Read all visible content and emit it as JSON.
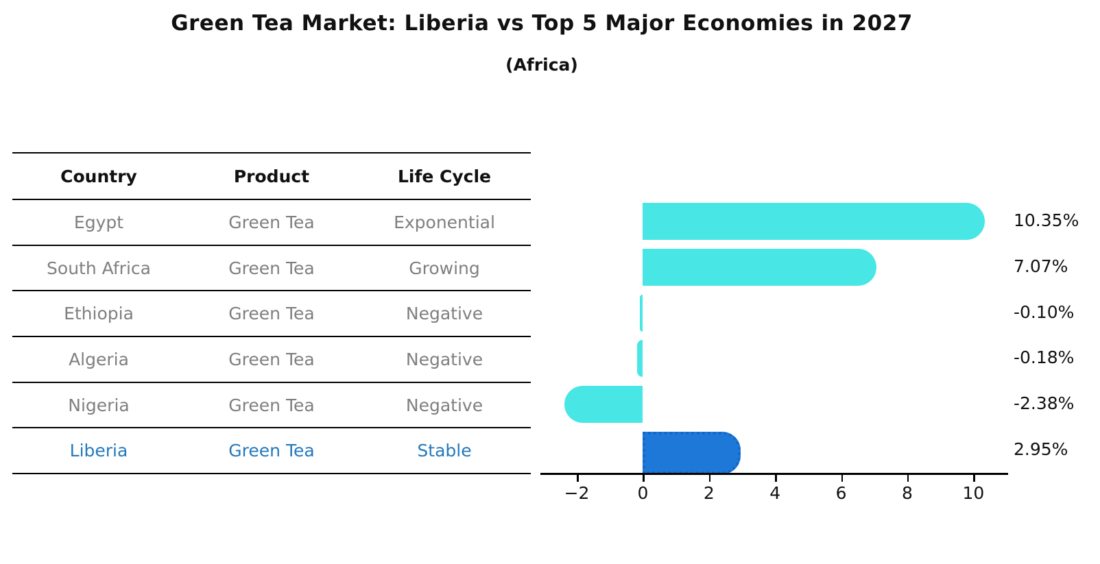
{
  "title": "Green Tea Market: Liberia vs Top 5 Major Economies in 2027",
  "subtitle": "(Africa)",
  "colors": {
    "bar": "#48e6e4",
    "highlight_bar": "#1e78d7",
    "highlight_bar_border": "#1565c8",
    "highlight_text": "#2479bd",
    "cell_text": "#7f7f7f",
    "header_text": "#111111",
    "axis": "#000000"
  },
  "table": {
    "headers": [
      "Country",
      "Product",
      "Life Cycle"
    ],
    "rows": [
      {
        "country": "Egypt",
        "product": "Green Tea",
        "life_cycle": "Exponential",
        "highlight": false
      },
      {
        "country": "South Africa",
        "product": "Green Tea",
        "life_cycle": "Growing",
        "highlight": false
      },
      {
        "country": "Ethiopia",
        "product": "Green Tea",
        "life_cycle": "Negative",
        "highlight": false
      },
      {
        "country": "Algeria",
        "product": "Green Tea",
        "life_cycle": "Negative",
        "highlight": false
      },
      {
        "country": "Nigeria",
        "product": "Green Tea",
        "life_cycle": "Negative",
        "highlight": false
      },
      {
        "country": "Liberia",
        "product": "Green Tea",
        "life_cycle": "Stable",
        "highlight": true
      }
    ]
  },
  "chart_data": {
    "type": "bar",
    "orientation": "horizontal",
    "title": "Green Tea Market: Liberia vs Top 5 Major Economies in 2027",
    "subtitle": "(Africa)",
    "categories": [
      "Egypt",
      "South Africa",
      "Ethiopia",
      "Algeria",
      "Nigeria",
      "Liberia"
    ],
    "values": [
      10.35,
      7.07,
      -0.1,
      -0.18,
      -2.38,
      2.95
    ],
    "value_labels": [
      "10.35%",
      "7.07%",
      "-0.10%",
      "-0.18%",
      "-2.38%",
      "2.95%"
    ],
    "highlight_index": 5,
    "xlabel": "",
    "ylabel": "",
    "xlim": [
      -3.1,
      11.05
    ],
    "xticks": [
      -2,
      0,
      2,
      4,
      6,
      8,
      10
    ],
    "xtick_labels": [
      "−2",
      "0",
      "2",
      "4",
      "6",
      "8",
      "10"
    ],
    "grid": false,
    "legend": false
  }
}
